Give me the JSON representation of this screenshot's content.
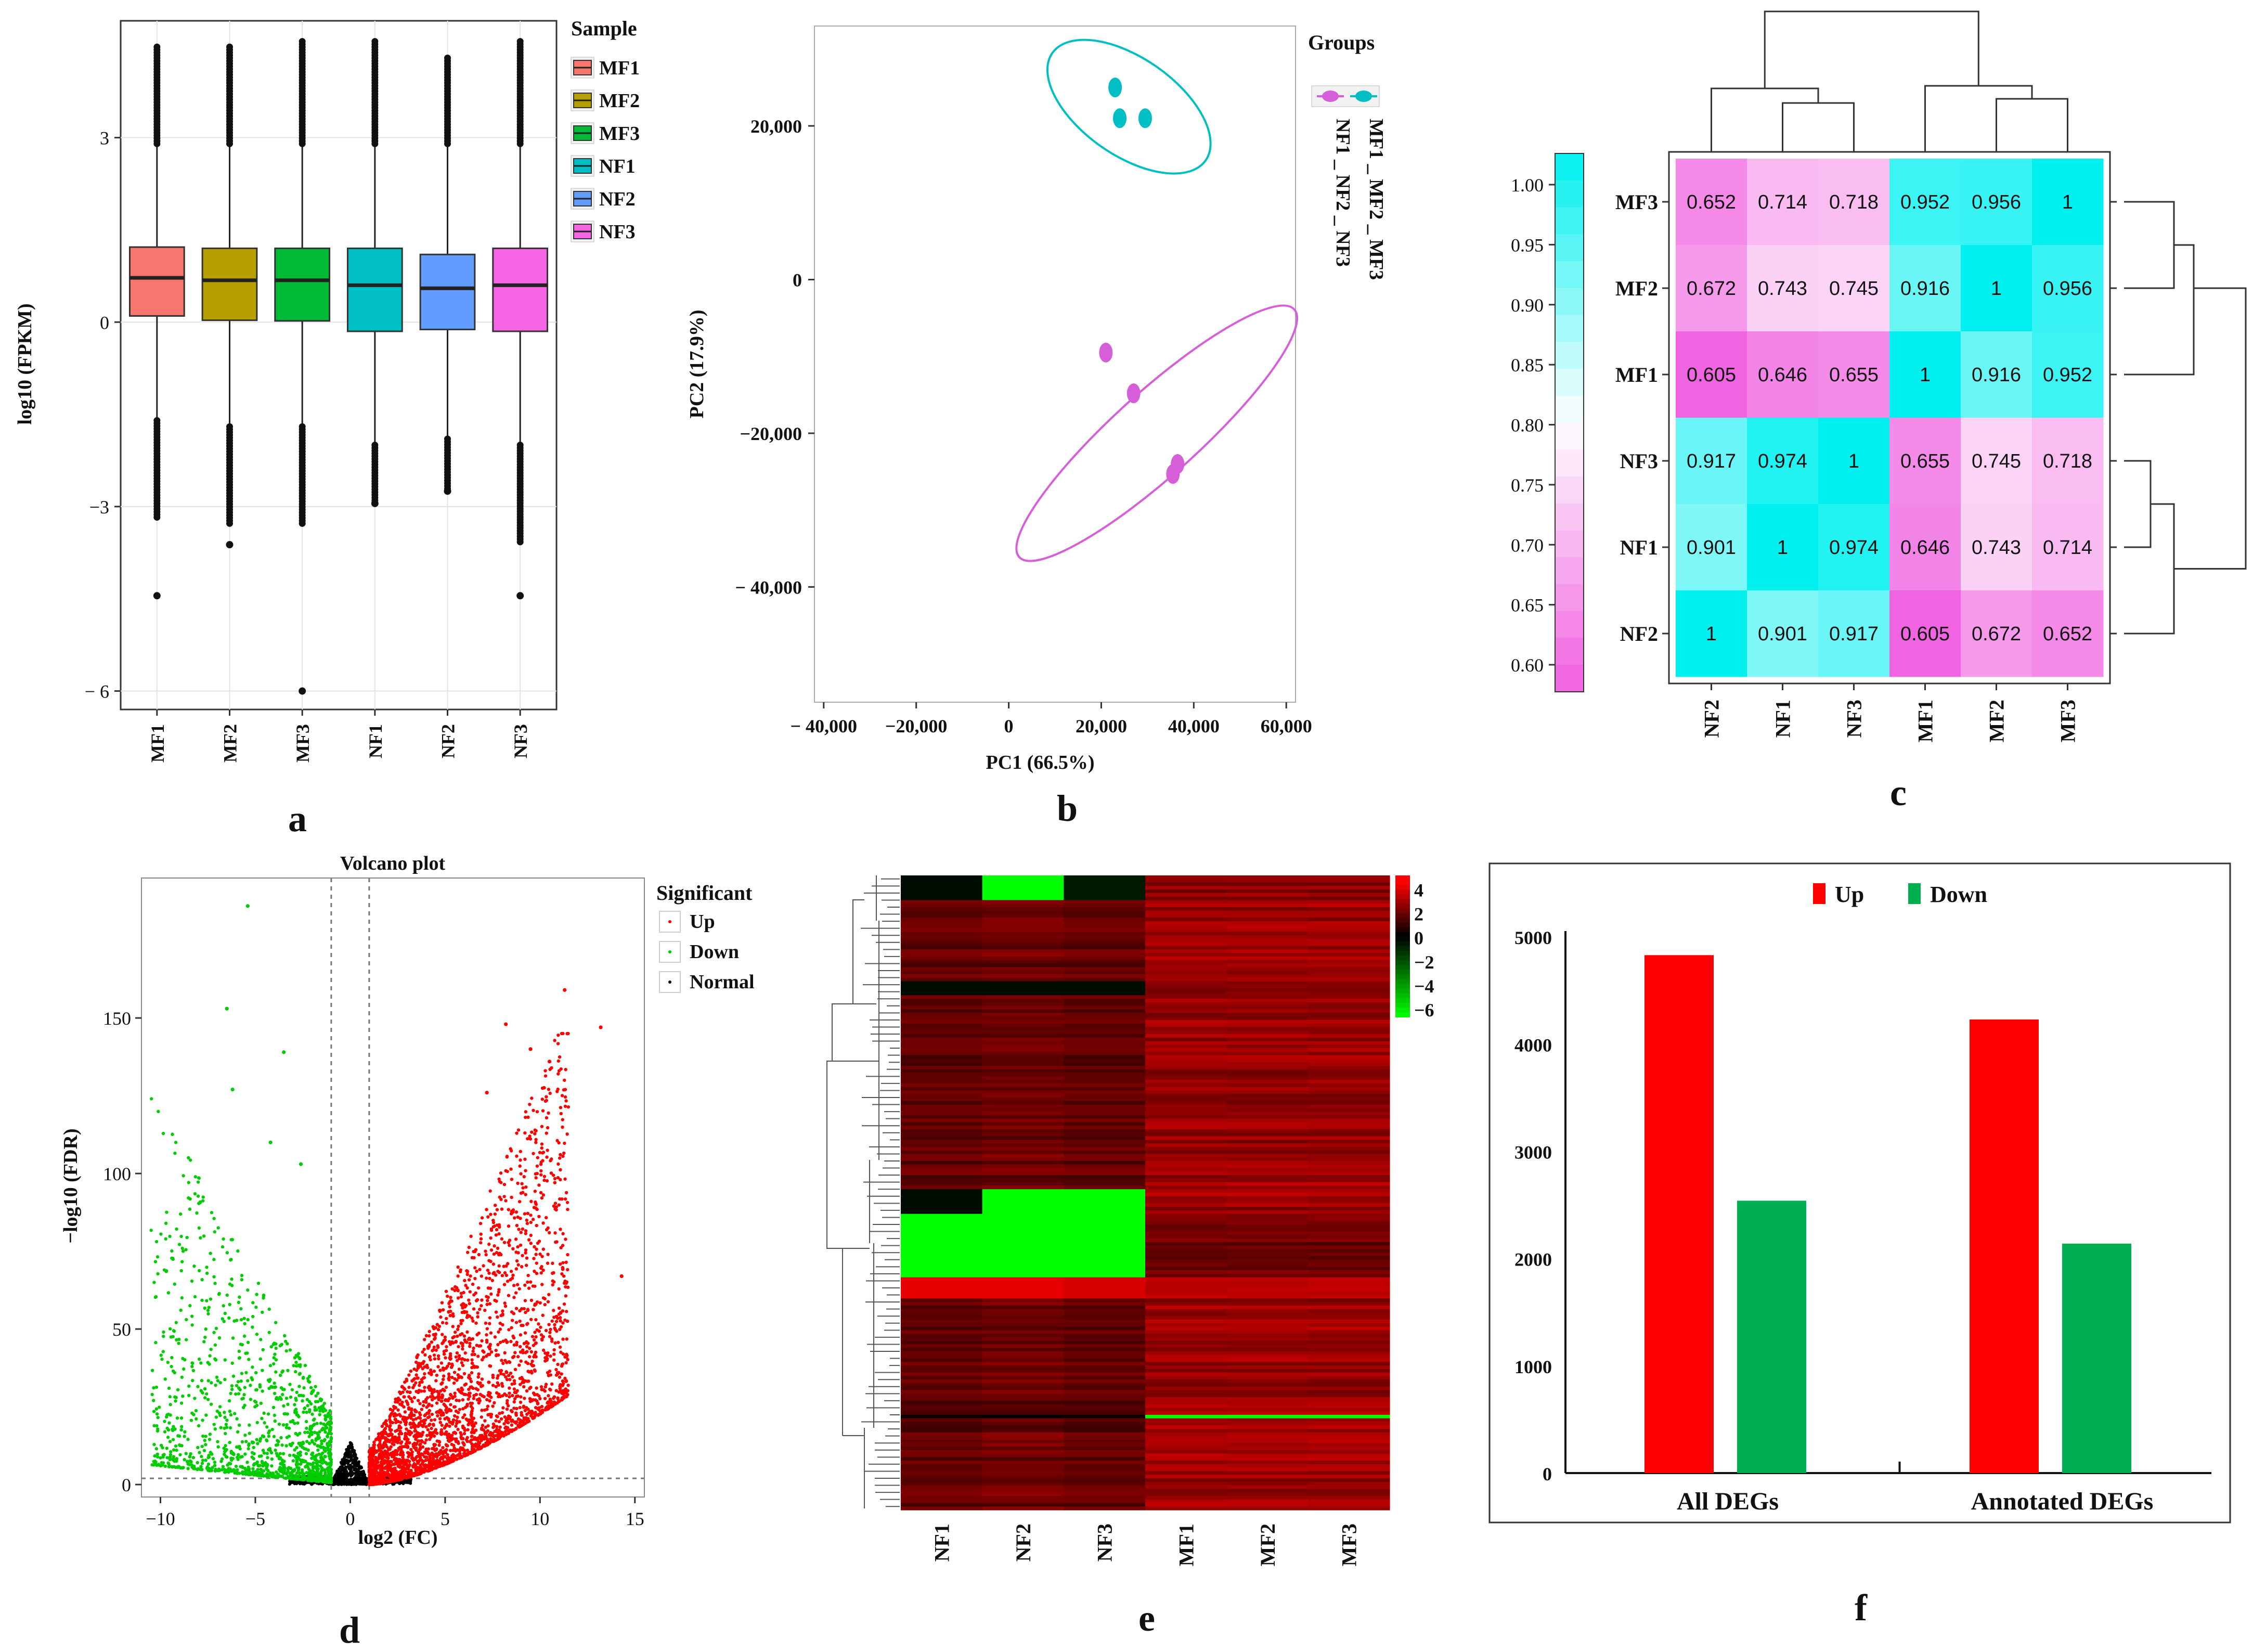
{
  "panels": {
    "a": {
      "letter": "a",
      "chart_data": {
        "type": "box",
        "ylabel": "log10 (FPKM)",
        "ylim": [
          -6.3,
          4.9
        ],
        "yticks": [
          {
            "v": 3,
            "label": "3"
          },
          {
            "v": 0,
            "label": "0"
          },
          {
            "v": -3,
            "label": "−3"
          },
          {
            "v": -6,
            "label": "− 6"
          }
        ],
        "categories": [
          "MF1",
          "MF2",
          "MF3",
          "NF1",
          "NF2",
          "NF3"
        ],
        "legend_title": "Sample",
        "legend_position": "right",
        "series": [
          {
            "name": "MF1",
            "color": "#F8766D",
            "q1": 0.1,
            "median": 0.72,
            "q3": 1.22,
            "whisker_low": -1.6,
            "whisker_high": 2.9,
            "outlier_low": -4.45,
            "outlier_high": 4.5
          },
          {
            "name": "MF2",
            "color": "#B79F00",
            "q1": 0.03,
            "median": 0.68,
            "q3": 1.2,
            "whisker_low": -1.7,
            "whisker_high": 2.9,
            "outlier_low": -3.62,
            "outlier_high": 4.5
          },
          {
            "name": "MF3",
            "color": "#00BA38",
            "q1": 0.02,
            "median": 0.68,
            "q3": 1.2,
            "whisker_low": -1.7,
            "whisker_high": 2.9,
            "outlier_low": -6.0,
            "outlier_high": 4.6
          },
          {
            "name": "NF1",
            "color": "#00BFC4",
            "q1": -0.15,
            "median": 0.6,
            "q3": 1.2,
            "whisker_low": -2.0,
            "whisker_high": 2.9,
            "outlier_low": -2.95,
            "outlier_high": 4.6
          },
          {
            "name": "NF2",
            "color": "#619CFF",
            "q1": -0.12,
            "median": 0.55,
            "q3": 1.1,
            "whisker_low": -1.9,
            "whisker_high": 2.9,
            "outlier_low": -2.75,
            "outlier_high": 4.3
          },
          {
            "name": "NF3",
            "color": "#F564E3",
            "q1": -0.15,
            "median": 0.6,
            "q3": 1.2,
            "whisker_low": -2.0,
            "whisker_high": 2.9,
            "outlier_low": -4.45,
            "outlier_high": 4.6
          }
        ]
      }
    },
    "b": {
      "letter": "b",
      "chart_data": {
        "type": "scatter",
        "xlabel": "PC1 (66.5%)",
        "ylabel": "PC2 (17.9%)",
        "xlim": [
          -42000,
          62000
        ],
        "ylim": [
          -55000,
          33000
        ],
        "xticks": [
          {
            "v": -40000,
            "label": "− 40,000"
          },
          {
            "v": -20000,
            "label": "−20,000"
          },
          {
            "v": 0,
            "label": "0"
          },
          {
            "v": 20000,
            "label": "20,000"
          },
          {
            "v": 40000,
            "label": "40,000"
          },
          {
            "v": 60000,
            "label": "60,000"
          }
        ],
        "yticks": [
          {
            "v": 20000,
            "label": "20,000"
          },
          {
            "v": 0,
            "label": "0"
          },
          {
            "v": -20000,
            "label": "−20,000"
          },
          {
            "v": -40000,
            "label": "− 40,000"
          }
        ],
        "legend_title": "Groups",
        "series": [
          {
            "name": "MF1 _ MF2 _ MF3",
            "color": "#00BFC4",
            "points": [
              [
                23000,
                25000
              ],
              [
                24000,
                21000
              ],
              [
                29500,
                21000
              ]
            ],
            "ellipse": {
              "cx": 26000,
              "cy": 22500,
              "rx": 10500,
              "ry": 5800,
              "angle": -55
            }
          },
          {
            "name": "NF1 _ NF2 _ NF3",
            "color": "#D65ED9",
            "points": [
              [
                21000,
                -9500
              ],
              [
                27000,
                -14800
              ],
              [
                35500,
                -25300
              ],
              [
                36500,
                -24000
              ]
            ],
            "ellipse": {
              "cx": 32000,
              "cy": -20000,
              "rx": 40000,
              "ry": 2600,
              "angle": -42
            }
          }
        ]
      }
    },
    "c": {
      "letter": "c",
      "chart_data": {
        "type": "heatmap",
        "rows": [
          "MF3",
          "MF2",
          "MF1",
          "NF3",
          "NF1",
          "NF2"
        ],
        "cols": [
          "NF2",
          "NF1",
          "NF3",
          "MF1",
          "MF2",
          "MF3"
        ],
        "values": [
          [
            "0.652",
            "0.714",
            "0.718",
            "0.952",
            "0.956",
            "1"
          ],
          [
            "0.672",
            "0.743",
            "0.745",
            "0.916",
            "1",
            "0.956"
          ],
          [
            "0.605",
            "0.646",
            "0.655",
            "1",
            "0.916",
            "0.952"
          ],
          [
            "0.917",
            "0.974",
            "1",
            "0.655",
            "0.745",
            "0.718"
          ],
          [
            "0.901",
            "1",
            "0.974",
            "0.646",
            "0.743",
            "0.714"
          ],
          [
            "1",
            "0.901",
            "0.917",
            "0.605",
            "0.672",
            "0.652"
          ]
        ],
        "colorbar": {
          "ticks": [
            "1.00",
            "0.95",
            "0.90",
            "0.85",
            "0.80",
            "0.75",
            "0.70",
            "0.65",
            "0.60"
          ],
          "min": 0.6,
          "max": 1.0,
          "low_color": "#F05FE0",
          "mid_color": "#FFFFFF",
          "high_color": "#00F0F0"
        }
      }
    },
    "d": {
      "letter": "d",
      "chart_data": {
        "type": "scatter",
        "title": "Volcano plot",
        "xlabel": "log2 (FC)",
        "ylabel": "−log10 (FDR)",
        "xlim": [
          -11,
          15.5
        ],
        "ylim": [
          -4,
          195
        ],
        "xticks": [
          {
            "v": -10,
            "label": "−10"
          },
          {
            "v": -5,
            "label": "−5"
          },
          {
            "v": 0,
            "label": "0"
          },
          {
            "v": 5,
            "label": "5"
          },
          {
            "v": 10,
            "label": "10"
          },
          {
            "v": 15,
            "label": "15"
          }
        ],
        "yticks": [
          {
            "v": 0,
            "label": "0"
          },
          {
            "v": 50,
            "label": "50"
          },
          {
            "v": 100,
            "label": "100"
          },
          {
            "v": 150,
            "label": "150"
          }
        ],
        "thresholds": {
          "log2fc": [
            -1,
            1
          ],
          "neg_log10_fdr": 2
        },
        "legend_title": "Significant",
        "legend": [
          {
            "name": "Up",
            "color": "#FF0000"
          },
          {
            "name": "Down",
            "color": "#00CC00"
          },
          {
            "name": "Normal",
            "color": "#000000"
          }
        ],
        "highlight_points": [
          {
            "x": -5.4,
            "y": 186,
            "g": "down"
          },
          {
            "x": -6.5,
            "y": 153,
            "g": "down"
          },
          {
            "x": -3.5,
            "y": 139,
            "g": "down"
          },
          {
            "x": -6.2,
            "y": 127,
            "g": "down"
          },
          {
            "x": -4.2,
            "y": 110,
            "g": "down"
          },
          {
            "x": -2.6,
            "y": 103,
            "g": "down"
          },
          {
            "x": 11.3,
            "y": 159,
            "g": "up"
          },
          {
            "x": 8.2,
            "y": 148,
            "g": "up"
          },
          {
            "x": 13.2,
            "y": 147,
            "g": "up"
          },
          {
            "x": 9.5,
            "y": 140,
            "g": "up"
          },
          {
            "x": 10.5,
            "y": 136,
            "g": "up"
          },
          {
            "x": 7.2,
            "y": 126,
            "g": "up"
          },
          {
            "x": 14.3,
            "y": 67,
            "g": "up"
          }
        ]
      }
    },
    "e": {
      "letter": "e",
      "chart_data": {
        "type": "heatmap",
        "cols": [
          "NF1",
          "NF2",
          "NF3",
          "MF1",
          "MF2",
          "MF3"
        ],
        "colorbar": {
          "ticks": [
            "4",
            "2",
            "0",
            "−2",
            "−4",
            "−6"
          ],
          "min": -6,
          "max": 4.5,
          "low_color": "#00FF00",
          "mid_color": "#000000",
          "high_color": "#FF0000"
        }
      }
    },
    "f": {
      "letter": "f",
      "chart_data": {
        "type": "bar",
        "categories": [
          "All DEGs",
          "Annotated DEGs"
        ],
        "series": [
          {
            "name": "Up",
            "color": "#FF0000",
            "values": [
              4830,
              4230
            ]
          },
          {
            "name": "Down",
            "color": "#00B050",
            "values": [
              2540,
              2140
            ]
          }
        ],
        "ylim": [
          0,
          5200
        ],
        "yticks": [
          {
            "v": 0,
            "label": "0"
          },
          {
            "v": 1000,
            "label": "1000"
          },
          {
            "v": 2000,
            "label": "2000"
          },
          {
            "v": 3000,
            "label": "3000"
          },
          {
            "v": 4000,
            "label": "4000"
          },
          {
            "v": 5000,
            "label": "5000"
          }
        ],
        "legend_position": "top"
      }
    }
  }
}
